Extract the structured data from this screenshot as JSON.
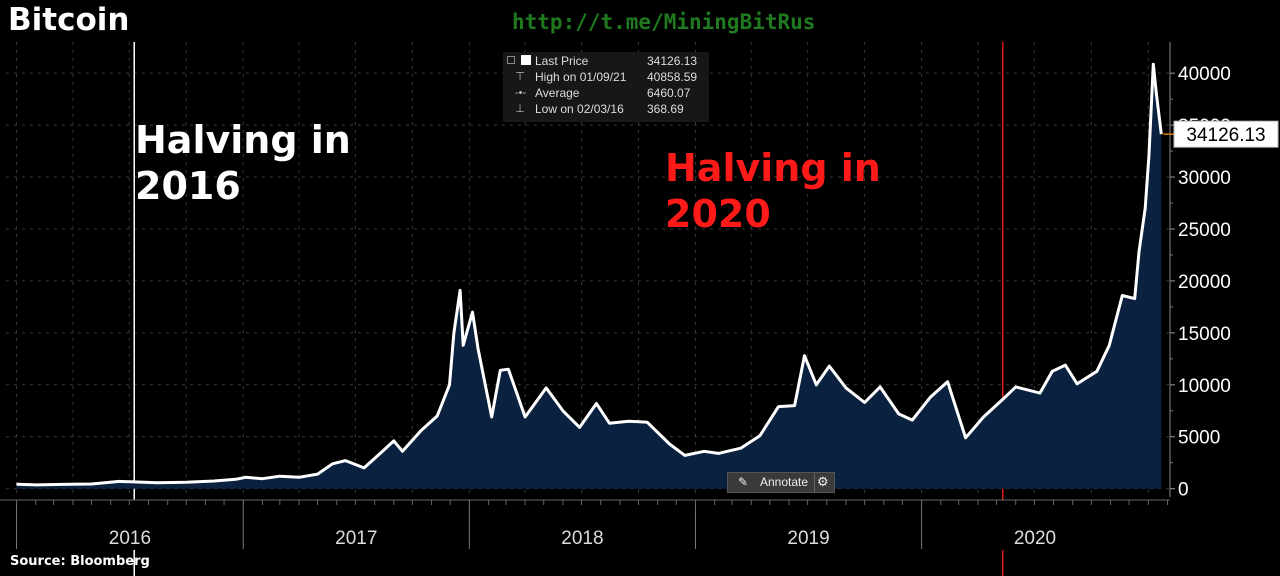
{
  "page": {
    "title": "Bitcoin",
    "watermark": "http://t.me/MiningBitRus",
    "source": "Source: Bloomberg",
    "annotate_label": "Annotate"
  },
  "annotations": [
    {
      "text_line1": "Halving in",
      "text_line2": "2016",
      "color": "#ffffff",
      "date": "2016-07-09"
    },
    {
      "text_line1": "Halving in",
      "text_line2": "2020",
      "color": "#ff1a1a",
      "date": "2020-05-11"
    }
  ],
  "legend": {
    "rows": [
      {
        "label": "Last Price",
        "value": "34126.13"
      },
      {
        "label": "High on 01/09/21",
        "value": "40858.59"
      },
      {
        "label": "Average",
        "value": "6460.07"
      },
      {
        "label": "Low on 02/03/16",
        "value": "368.69"
      }
    ]
  },
  "colors": {
    "line": "#ffffff",
    "area": "#0b2140",
    "last_price_marker": "#e07a10",
    "halving_2016": "#ffffff",
    "halving_2020": "#e01a1a",
    "watermark": "#1f7a1f",
    "grid": "#3a3a3a"
  },
  "chart_data": {
    "type": "area",
    "title": "Bitcoin",
    "xlabel": "",
    "ylabel": "",
    "ylim": [
      -800,
      43000
    ],
    "yticks": [
      0,
      5000,
      10000,
      15000,
      20000,
      25000,
      30000,
      35000,
      40000
    ],
    "xticks": [
      "2016",
      "2017",
      "2018",
      "2019",
      "2020"
    ],
    "grid": true,
    "last_price_label": "34126.13",
    "series": [
      {
        "name": "Bitcoin",
        "points": [
          [
            "2016-01-01",
            430
          ],
          [
            "2016-02-03",
            369
          ],
          [
            "2016-03-15",
            415
          ],
          [
            "2016-05-01",
            450
          ],
          [
            "2016-06-15",
            700
          ],
          [
            "2016-07-09",
            650
          ],
          [
            "2016-08-15",
            575
          ],
          [
            "2016-10-01",
            615
          ],
          [
            "2016-11-15",
            740
          ],
          [
            "2016-12-20",
            900
          ],
          [
            "2017-01-05",
            1100
          ],
          [
            "2017-02-01",
            960
          ],
          [
            "2017-03-01",
            1200
          ],
          [
            "2017-04-01",
            1100
          ],
          [
            "2017-05-01",
            1400
          ],
          [
            "2017-05-25",
            2400
          ],
          [
            "2017-06-15",
            2700
          ],
          [
            "2017-07-15",
            2000
          ],
          [
            "2017-08-10",
            3400
          ],
          [
            "2017-09-01",
            4600
          ],
          [
            "2017-09-15",
            3600
          ],
          [
            "2017-10-15",
            5600
          ],
          [
            "2017-11-10",
            7000
          ],
          [
            "2017-11-30",
            10000
          ],
          [
            "2017-12-07",
            15000
          ],
          [
            "2017-12-17",
            19100
          ],
          [
            "2017-12-22",
            13800
          ],
          [
            "2018-01-06",
            17000
          ],
          [
            "2018-01-15",
            13500
          ],
          [
            "2018-02-06",
            6900
          ],
          [
            "2018-02-20",
            11400
          ],
          [
            "2018-03-05",
            11500
          ],
          [
            "2018-04-01",
            6900
          ],
          [
            "2018-05-05",
            9700
          ],
          [
            "2018-06-01",
            7500
          ],
          [
            "2018-06-28",
            5900
          ],
          [
            "2018-07-25",
            8200
          ],
          [
            "2018-08-15",
            6300
          ],
          [
            "2018-09-15",
            6500
          ],
          [
            "2018-10-15",
            6400
          ],
          [
            "2018-11-20",
            4300
          ],
          [
            "2018-12-15",
            3200
          ],
          [
            "2019-01-15",
            3600
          ],
          [
            "2019-02-07",
            3400
          ],
          [
            "2019-03-15",
            3900
          ],
          [
            "2019-04-15",
            5100
          ],
          [
            "2019-05-15",
            7900
          ],
          [
            "2019-06-10",
            8000
          ],
          [
            "2019-06-26",
            12800
          ],
          [
            "2019-07-15",
            10000
          ],
          [
            "2019-08-05",
            11800
          ],
          [
            "2019-09-01",
            9700
          ],
          [
            "2019-10-01",
            8300
          ],
          [
            "2019-10-26",
            9800
          ],
          [
            "2019-11-25",
            7200
          ],
          [
            "2019-12-17",
            6600
          ],
          [
            "2020-01-15",
            8800
          ],
          [
            "2020-02-12",
            10300
          ],
          [
            "2020-03-12",
            4900
          ],
          [
            "2020-04-10",
            6900
          ],
          [
            "2020-05-11",
            8600
          ],
          [
            "2020-06-01",
            9800
          ],
          [
            "2020-07-10",
            9200
          ],
          [
            "2020-07-30",
            11300
          ],
          [
            "2020-08-20",
            11900
          ],
          [
            "2020-09-08",
            10100
          ],
          [
            "2020-10-10",
            11300
          ],
          [
            "2020-10-30",
            13800
          ],
          [
            "2020-11-20",
            18600
          ],
          [
            "2020-12-10",
            18300
          ],
          [
            "2020-12-17",
            22800
          ],
          [
            "2020-12-27",
            27000
          ],
          [
            "2021-01-02",
            32000
          ],
          [
            "2021-01-09",
            40858.59
          ],
          [
            "2021-01-14",
            38000
          ],
          [
            "2021-01-22",
            34126.13
          ]
        ]
      }
    ]
  }
}
